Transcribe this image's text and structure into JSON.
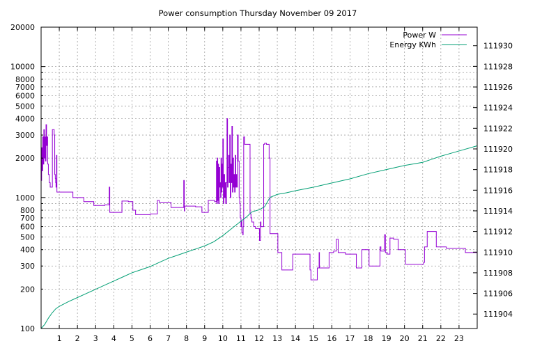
{
  "chart_data": {
    "type": "line",
    "title": "Power consumption Thursday November 09 2017",
    "x_ticks": [
      1,
      2,
      3,
      4,
      5,
      6,
      7,
      8,
      9,
      10,
      11,
      12,
      13,
      14,
      15,
      16,
      17,
      18,
      19,
      20,
      21,
      22,
      23
    ],
    "x_range": [
      0,
      24
    ],
    "y_left": {
      "scale": "log",
      "range": [
        100,
        20000
      ],
      "ticks": [
        100,
        200,
        300,
        400,
        500,
        600,
        700,
        800,
        1000,
        2000,
        3000,
        4000,
        5000,
        6000,
        7000,
        8000,
        10000,
        20000
      ],
      "gridlines": [
        100,
        200,
        300,
        400,
        500,
        600,
        700,
        800,
        900,
        1000,
        2000,
        3000,
        4000,
        5000,
        6000,
        7000,
        8000,
        9000,
        10000,
        20000
      ]
    },
    "y_right": {
      "scale": "linear",
      "range": [
        111902.6,
        111931.8
      ],
      "ticks": [
        111904,
        111906,
        111908,
        111910,
        111912,
        111914,
        111916,
        111918,
        111920,
        111922,
        111924,
        111926,
        111928,
        111930
      ]
    },
    "legend_position": "top-right",
    "grid": true,
    "series": [
      {
        "name": "Power W",
        "axis": "left",
        "color": "#9400d3",
        "points": [
          [
            0,
            1350
          ],
          [
            0.03,
            2400
          ],
          [
            0.06,
            1600
          ],
          [
            0.09,
            2900
          ],
          [
            0.12,
            1800
          ],
          [
            0.15,
            3300
          ],
          [
            0.18,
            2000
          ],
          [
            0.21,
            2900
          ],
          [
            0.24,
            1900
          ],
          [
            0.27,
            3600
          ],
          [
            0.3,
            2500
          ],
          [
            0.33,
            2900
          ],
          [
            0.36,
            1800
          ],
          [
            0.4,
            1500
          ],
          [
            0.45,
            1300
          ],
          [
            0.5,
            1200
          ],
          [
            0.55,
            1200
          ],
          [
            0.6,
            1200
          ],
          [
            0.62,
            3300
          ],
          [
            0.68,
            3300
          ],
          [
            0.72,
            3000
          ],
          [
            0.75,
            1500
          ],
          [
            0.78,
            1400
          ],
          [
            0.8,
            1300
          ],
          [
            0.82,
            1200
          ],
          [
            0.85,
            2100
          ],
          [
            0.87,
            1100
          ],
          [
            0.9,
            1100
          ],
          [
            1.0,
            1100
          ],
          [
            1.05,
            1100
          ],
          [
            1.15,
            1100
          ],
          [
            1.2,
            1100
          ],
          [
            1.25,
            1100
          ],
          [
            1.3,
            1100
          ],
          [
            1.35,
            1100
          ],
          [
            1.4,
            1100
          ],
          [
            1.5,
            1100
          ],
          [
            1.6,
            1100
          ],
          [
            1.7,
            1100
          ],
          [
            1.75,
            1000
          ],
          [
            2.0,
            1000
          ],
          [
            2.3,
            1000
          ],
          [
            2.35,
            930
          ],
          [
            2.5,
            930
          ],
          [
            2.8,
            930
          ],
          [
            2.9,
            870
          ],
          [
            3.2,
            870
          ],
          [
            3.5,
            880
          ],
          [
            3.7,
            880
          ],
          [
            3.75,
            1200
          ],
          [
            3.78,
            770
          ],
          [
            4.0,
            770
          ],
          [
            4.2,
            770
          ],
          [
            4.4,
            770
          ],
          [
            4.45,
            940
          ],
          [
            4.6,
            940
          ],
          [
            4.8,
            930
          ],
          [
            5.0,
            930
          ],
          [
            5.05,
            800
          ],
          [
            5.15,
            800
          ],
          [
            5.2,
            740
          ],
          [
            5.5,
            740
          ],
          [
            6.0,
            750
          ],
          [
            6.35,
            750
          ],
          [
            6.4,
            950
          ],
          [
            6.5,
            920
          ],
          [
            6.8,
            920
          ],
          [
            7.1,
            920
          ],
          [
            7.15,
            840
          ],
          [
            7.5,
            840
          ],
          [
            7.8,
            840
          ],
          [
            7.85,
            1350
          ],
          [
            7.88,
            790
          ],
          [
            7.9,
            860
          ],
          [
            8.2,
            860
          ],
          [
            8.5,
            850
          ],
          [
            8.7,
            850
          ],
          [
            8.8,
            850
          ],
          [
            8.85,
            770
          ],
          [
            9.0,
            770
          ],
          [
            9.15,
            770
          ],
          [
            9.2,
            950
          ],
          [
            9.3,
            950
          ],
          [
            9.5,
            950
          ],
          [
            9.55,
            930
          ],
          [
            9.6,
            930
          ],
          [
            9.65,
            1900
          ],
          [
            9.67,
            900
          ],
          [
            9.7,
            2000
          ],
          [
            9.72,
            950
          ],
          [
            9.75,
            1800
          ],
          [
            9.77,
            900
          ],
          [
            9.8,
            1700
          ],
          [
            9.83,
            1200
          ],
          [
            9.85,
            1300
          ],
          [
            9.88,
            1000
          ],
          [
            9.9,
            2000
          ],
          [
            9.93,
            1100
          ],
          [
            9.95,
            1800
          ],
          [
            9.98,
            1200
          ],
          [
            10.0,
            2800
          ],
          [
            10.03,
            900
          ],
          [
            10.06,
            1500
          ],
          [
            10.1,
            1000
          ],
          [
            10.13,
            1300
          ],
          [
            10.16,
            900
          ],
          [
            10.2,
            1300
          ],
          [
            10.23,
            4000
          ],
          [
            10.26,
            1200
          ],
          [
            10.29,
            1700
          ],
          [
            10.32,
            2100
          ],
          [
            10.35,
            1300
          ],
          [
            10.38,
            3000
          ],
          [
            10.41,
            1000
          ],
          [
            10.44,
            1800
          ],
          [
            10.47,
            1300
          ],
          [
            10.5,
            3500
          ],
          [
            10.53,
            1100
          ],
          [
            10.56,
            2000
          ],
          [
            10.59,
            1200
          ],
          [
            10.62,
            1500
          ],
          [
            10.65,
            1100
          ],
          [
            10.68,
            2100
          ],
          [
            10.71,
            1200
          ],
          [
            10.74,
            1500
          ],
          [
            10.77,
            1200
          ],
          [
            10.8,
            3000
          ],
          [
            10.85,
            1900
          ],
          [
            10.9,
            1000
          ],
          [
            10.93,
            900
          ],
          [
            10.96,
            700
          ],
          [
            11.0,
            600
          ],
          [
            11.03,
            660
          ],
          [
            11.05,
            540
          ],
          [
            11.1,
            520
          ],
          [
            11.12,
            600
          ],
          [
            11.15,
            2900
          ],
          [
            11.2,
            2550
          ],
          [
            11.3,
            2550
          ],
          [
            11.45,
            2550
          ],
          [
            11.5,
            750
          ],
          [
            11.55,
            700
          ],
          [
            11.6,
            650
          ],
          [
            11.7,
            600
          ],
          [
            11.8,
            580
          ],
          [
            11.9,
            580
          ],
          [
            12.0,
            580
          ],
          [
            12.02,
            470
          ],
          [
            12.05,
            470
          ],
          [
            12.07,
            650
          ],
          [
            12.1,
            600
          ],
          [
            12.2,
            600
          ],
          [
            12.25,
            2550
          ],
          [
            12.3,
            2600
          ],
          [
            12.4,
            2550
          ],
          [
            12.5,
            2550
          ],
          [
            12.55,
            2000
          ],
          [
            12.6,
            530
          ],
          [
            12.8,
            530
          ],
          [
            13.0,
            530
          ],
          [
            13.03,
            380
          ],
          [
            13.1,
            380
          ],
          [
            13.2,
            380
          ],
          [
            13.25,
            280
          ],
          [
            13.5,
            280
          ],
          [
            13.8,
            280
          ],
          [
            13.85,
            370
          ],
          [
            14.2,
            370
          ],
          [
            14.5,
            370
          ],
          [
            14.75,
            370
          ],
          [
            14.8,
            280
          ],
          [
            14.85,
            235
          ],
          [
            15.0,
            235
          ],
          [
            15.15,
            235
          ],
          [
            15.2,
            290
          ],
          [
            15.25,
            290
          ],
          [
            15.3,
            380
          ],
          [
            15.32,
            290
          ],
          [
            15.5,
            290
          ],
          [
            15.8,
            290
          ],
          [
            15.85,
            380
          ],
          [
            16.0,
            380
          ],
          [
            16.1,
            390
          ],
          [
            16.2,
            390
          ],
          [
            16.25,
            480
          ],
          [
            16.3,
            480
          ],
          [
            16.35,
            380
          ],
          [
            16.5,
            380
          ],
          [
            16.7,
            380
          ],
          [
            16.75,
            370
          ],
          [
            17.0,
            370
          ],
          [
            17.3,
            370
          ],
          [
            17.35,
            290
          ],
          [
            17.5,
            290
          ],
          [
            17.6,
            290
          ],
          [
            17.65,
            400
          ],
          [
            17.8,
            400
          ],
          [
            18.0,
            400
          ],
          [
            18.05,
            300
          ],
          [
            18.5,
            300
          ],
          [
            18.6,
            300
          ],
          [
            18.65,
            420
          ],
          [
            18.7,
            390
          ],
          [
            18.8,
            390
          ],
          [
            18.9,
            520
          ],
          [
            18.95,
            380
          ],
          [
            19.0,
            380
          ],
          [
            19.05,
            370
          ],
          [
            19.15,
            370
          ],
          [
            19.2,
            490
          ],
          [
            19.3,
            490
          ],
          [
            19.4,
            480
          ],
          [
            19.5,
            480
          ],
          [
            19.6,
            480
          ],
          [
            19.65,
            400
          ],
          [
            19.8,
            400
          ],
          [
            20.0,
            400
          ],
          [
            20.05,
            310
          ],
          [
            20.5,
            310
          ],
          [
            21.0,
            310
          ],
          [
            21.05,
            320
          ],
          [
            21.1,
            420
          ],
          [
            21.2,
            420
          ],
          [
            21.25,
            550
          ],
          [
            21.5,
            550
          ],
          [
            21.7,
            550
          ],
          [
            21.75,
            420
          ],
          [
            22.0,
            420
          ],
          [
            22.3,
            410
          ],
          [
            23.0,
            410
          ],
          [
            23.3,
            410
          ],
          [
            23.35,
            380
          ],
          [
            24.0,
            380
          ]
        ]
      },
      {
        "name": "Energy KWh",
        "axis": "right",
        "color": "#009e73",
        "points": [
          [
            0,
            111902.6
          ],
          [
            0.2,
            111903.0
          ],
          [
            0.4,
            111903.6
          ],
          [
            0.6,
            111904.1
          ],
          [
            0.8,
            111904.5
          ],
          [
            1.0,
            111904.75
          ],
          [
            1.5,
            111905.2
          ],
          [
            2.0,
            111905.6
          ],
          [
            2.5,
            111906.0
          ],
          [
            3.0,
            111906.4
          ],
          [
            3.5,
            111906.8
          ],
          [
            4.0,
            111907.2
          ],
          [
            4.5,
            111907.6
          ],
          [
            5.0,
            111908.0
          ],
          [
            5.5,
            111908.3
          ],
          [
            6.0,
            111908.6
          ],
          [
            6.5,
            111909.0
          ],
          [
            7.0,
            111909.4
          ],
          [
            7.5,
            111909.7
          ],
          [
            8.0,
            111910.0
          ],
          [
            8.5,
            111910.3
          ],
          [
            9.0,
            111910.6
          ],
          [
            9.5,
            111911.0
          ],
          [
            10.0,
            111911.6
          ],
          [
            10.5,
            111912.3
          ],
          [
            11.0,
            111913.0
          ],
          [
            11.3,
            111913.4
          ],
          [
            11.6,
            111913.9
          ],
          [
            12.0,
            111914.1
          ],
          [
            12.3,
            111914.4
          ],
          [
            12.6,
            111915.3
          ],
          [
            13.0,
            111915.6
          ],
          [
            13.5,
            111915.75
          ],
          [
            14.0,
            111915.95
          ],
          [
            15.0,
            111916.3
          ],
          [
            16.0,
            111916.7
          ],
          [
            17.0,
            111917.1
          ],
          [
            18.0,
            111917.6
          ],
          [
            19.0,
            111918.0
          ],
          [
            20.0,
            111918.4
          ],
          [
            21.0,
            111918.7
          ],
          [
            21.5,
            111919.0
          ],
          [
            22.0,
            111919.3
          ],
          [
            23.0,
            111919.8
          ],
          [
            24.0,
            111920.3
          ]
        ]
      }
    ]
  }
}
